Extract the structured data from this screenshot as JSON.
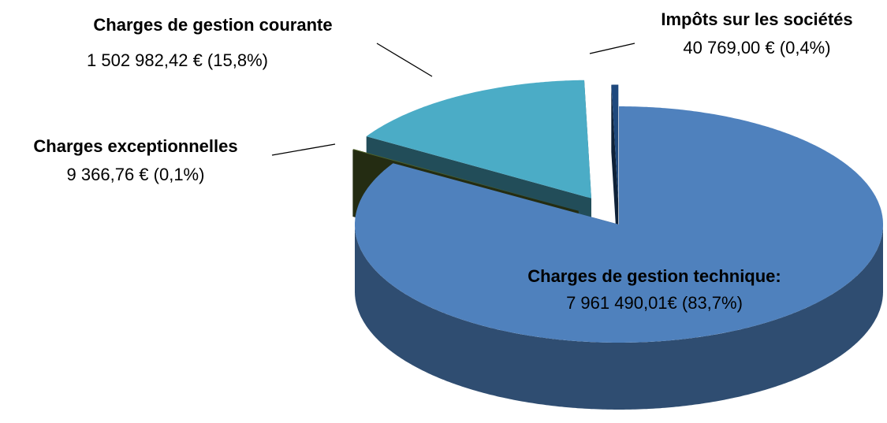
{
  "chart_data": {
    "type": "pie",
    "categories": [
      "Charges de gestion technique:",
      "Charges exceptionnelles",
      "Charges de gestion courante",
      "Impôts sur les sociétés"
    ],
    "values": [
      7961490.01,
      9366.76,
      1502982.42,
      40769.0
    ],
    "value_labels": [
      "7 961 490,01€ (83,7%)",
      "9 366,76 € (0,1%)",
      "1 502 982,42 € (15,8%)",
      "40 769,00 € (0,4%)"
    ],
    "colors": [
      "#4f81bd",
      "#4f6228",
      "#4bacc6",
      "#1f497d"
    ]
  }
}
